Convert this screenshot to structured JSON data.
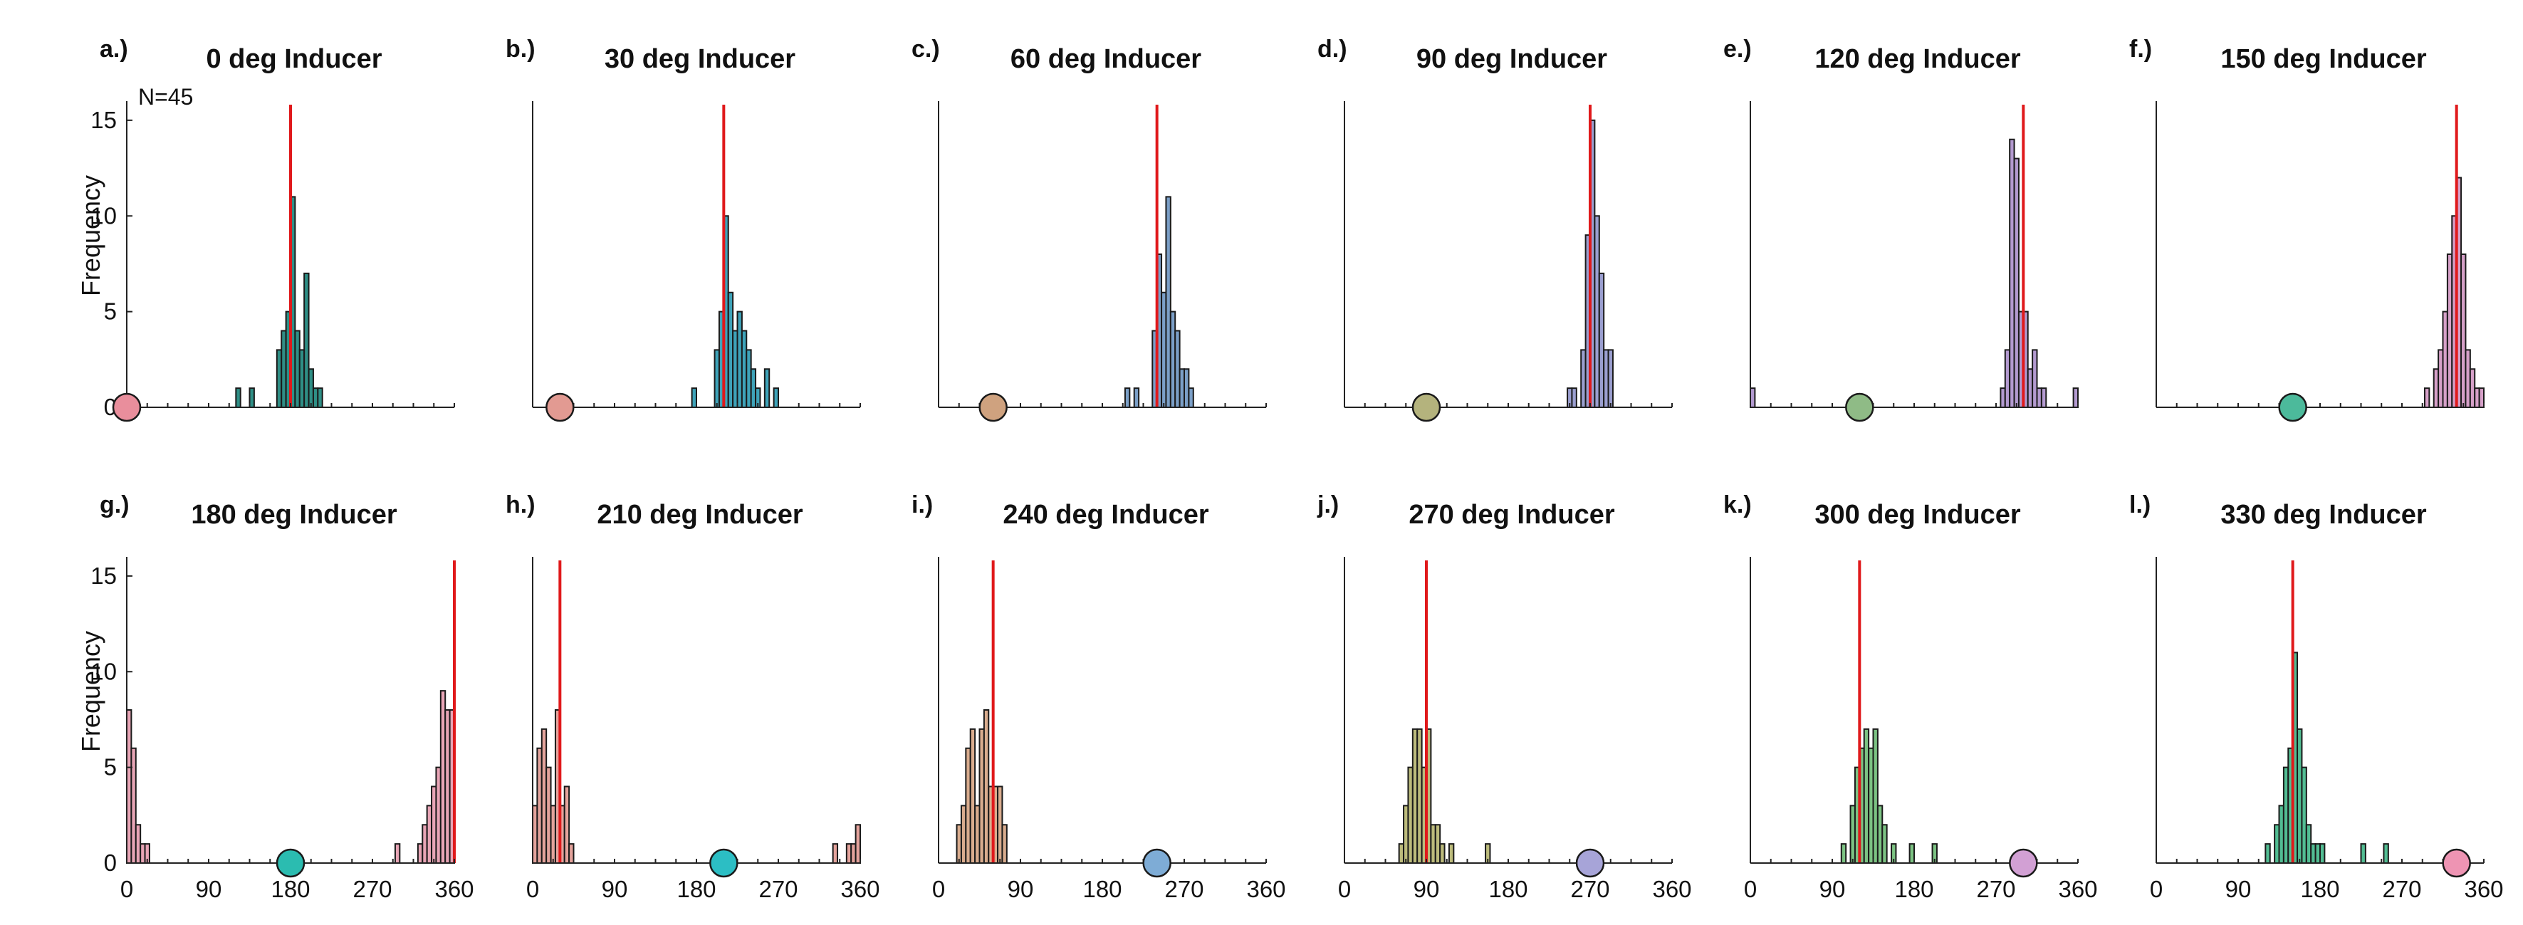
{
  "figure": {
    "y_label": "Frequency",
    "n_label": "N=45"
  },
  "axes": {
    "x_ticks": [
      0,
      90,
      180,
      270,
      360
    ],
    "xlim": [
      0,
      360
    ],
    "y_ticks": [
      0,
      5,
      10,
      15
    ],
    "ylim": [
      0,
      16
    ]
  },
  "chart_data": [
    {
      "type": "bar",
      "letter": "a.)",
      "title": "0 deg Inducer",
      "inducer_deg": 0,
      "inducer_color": "#e98e9c",
      "bar_color": "#2f8f86",
      "mean_deg": 180,
      "bins": [
        [
          120,
          1
        ],
        [
          135,
          1
        ],
        [
          165,
          3
        ],
        [
          170,
          4
        ],
        [
          175,
          5
        ],
        [
          180,
          11
        ],
        [
          185,
          4
        ],
        [
          190,
          3
        ],
        [
          195,
          7
        ],
        [
          200,
          2
        ],
        [
          205,
          1
        ],
        [
          210,
          1
        ]
      ]
    },
    {
      "type": "bar",
      "letter": "b.)",
      "title": "30 deg Inducer",
      "inducer_deg": 30,
      "inducer_color": "#e29a92",
      "bar_color": "#3ea3b9",
      "mean_deg": 210,
      "bins": [
        [
          175,
          1
        ],
        [
          200,
          3
        ],
        [
          205,
          5
        ],
        [
          210,
          10
        ],
        [
          215,
          6
        ],
        [
          220,
          4
        ],
        [
          225,
          5
        ],
        [
          230,
          4
        ],
        [
          235,
          3
        ],
        [
          240,
          2
        ],
        [
          245,
          1
        ],
        [
          255,
          2
        ],
        [
          265,
          1
        ]
      ]
    },
    {
      "type": "bar",
      "letter": "c.)",
      "title": "60 deg Inducer",
      "inducer_deg": 60,
      "inducer_color": "#cfa27f",
      "bar_color": "#7b9fc7",
      "mean_deg": 240,
      "bins": [
        [
          205,
          1
        ],
        [
          215,
          1
        ],
        [
          235,
          4
        ],
        [
          240,
          8
        ],
        [
          245,
          6
        ],
        [
          250,
          11
        ],
        [
          255,
          5
        ],
        [
          260,
          4
        ],
        [
          265,
          2
        ],
        [
          270,
          2
        ],
        [
          275,
          1
        ]
      ]
    },
    {
      "type": "bar",
      "letter": "d.)",
      "title": "90 deg Inducer",
      "inducer_deg": 90,
      "inducer_color": "#b4b37d",
      "bar_color": "#9b9fd0",
      "mean_deg": 270,
      "bins": [
        [
          245,
          1
        ],
        [
          250,
          1
        ],
        [
          260,
          3
        ],
        [
          265,
          9
        ],
        [
          270,
          15
        ],
        [
          275,
          10
        ],
        [
          280,
          7
        ],
        [
          285,
          3
        ],
        [
          290,
          3
        ]
      ]
    },
    {
      "type": "bar",
      "letter": "e.)",
      "title": "120 deg Inducer",
      "inducer_deg": 120,
      "inducer_color": "#8fbb86",
      "bar_color": "#b39ad0",
      "mean_deg": 300,
      "bins": [
        [
          0,
          1
        ],
        [
          275,
          1
        ],
        [
          280,
          3
        ],
        [
          285,
          14
        ],
        [
          290,
          13
        ],
        [
          295,
          5
        ],
        [
          300,
          5
        ],
        [
          305,
          2
        ],
        [
          310,
          3
        ],
        [
          315,
          1
        ],
        [
          320,
          1
        ],
        [
          355,
          1
        ]
      ]
    },
    {
      "type": "bar",
      "letter": "f.)",
      "title": "150 deg Inducer",
      "inducer_deg": 150,
      "inducer_color": "#4cba9b",
      "bar_color": "#d6a0c8",
      "mean_deg": 330,
      "bins": [
        [
          295,
          1
        ],
        [
          305,
          2
        ],
        [
          310,
          3
        ],
        [
          315,
          5
        ],
        [
          320,
          8
        ],
        [
          325,
          10
        ],
        [
          330,
          12
        ],
        [
          335,
          8
        ],
        [
          340,
          3
        ],
        [
          345,
          2
        ],
        [
          350,
          1
        ],
        [
          355,
          1
        ]
      ]
    },
    {
      "type": "bar",
      "letter": "g.)",
      "title": "180 deg Inducer",
      "inducer_deg": 180,
      "inducer_color": "#2bbcb0",
      "bar_color": "#e8a5b6",
      "mean_deg": 360,
      "bins": [
        [
          0,
          8
        ],
        [
          5,
          6
        ],
        [
          10,
          2
        ],
        [
          15,
          1
        ],
        [
          20,
          1
        ],
        [
          295,
          1
        ],
        [
          320,
          1
        ],
        [
          325,
          2
        ],
        [
          330,
          3
        ],
        [
          335,
          4
        ],
        [
          340,
          5
        ],
        [
          345,
          9
        ],
        [
          350,
          8
        ],
        [
          355,
          8
        ]
      ]
    },
    {
      "type": "bar",
      "letter": "h.)",
      "title": "210 deg Inducer",
      "inducer_deg": 210,
      "inducer_color": "#2cbec4",
      "bar_color": "#e4a39c",
      "mean_deg": 30,
      "bins": [
        [
          0,
          3
        ],
        [
          5,
          6
        ],
        [
          10,
          7
        ],
        [
          15,
          5
        ],
        [
          20,
          3
        ],
        [
          25,
          8
        ],
        [
          30,
          3
        ],
        [
          35,
          4
        ],
        [
          40,
          1
        ],
        [
          330,
          1
        ],
        [
          345,
          1
        ],
        [
          350,
          1
        ],
        [
          355,
          2
        ]
      ]
    },
    {
      "type": "bar",
      "letter": "i.)",
      "title": "240 deg Inducer",
      "inducer_deg": 240,
      "inducer_color": "#7eacd6",
      "bar_color": "#d9ac8e",
      "mean_deg": 60,
      "bins": [
        [
          20,
          2
        ],
        [
          25,
          3
        ],
        [
          30,
          6
        ],
        [
          35,
          7
        ],
        [
          40,
          3
        ],
        [
          45,
          7
        ],
        [
          50,
          8
        ],
        [
          55,
          4
        ],
        [
          60,
          4
        ],
        [
          65,
          4
        ],
        [
          70,
          2
        ]
      ]
    },
    {
      "type": "bar",
      "letter": "j.)",
      "title": "270 deg Inducer",
      "inducer_deg": 270,
      "inducer_color": "#a7a4d8",
      "bar_color": "#bcbb7c",
      "mean_deg": 90,
      "bins": [
        [
          60,
          1
        ],
        [
          65,
          3
        ],
        [
          70,
          5
        ],
        [
          75,
          7
        ],
        [
          80,
          7
        ],
        [
          85,
          5
        ],
        [
          90,
          7
        ],
        [
          95,
          2
        ],
        [
          100,
          2
        ],
        [
          105,
          1
        ],
        [
          115,
          1
        ],
        [
          155,
          1
        ]
      ]
    },
    {
      "type": "bar",
      "letter": "k.)",
      "title": "300 deg Inducer",
      "inducer_deg": 300,
      "inducer_color": "#d2a0d4",
      "bar_color": "#7cc383",
      "mean_deg": 120,
      "bins": [
        [
          100,
          1
        ],
        [
          110,
          3
        ],
        [
          115,
          5
        ],
        [
          120,
          6
        ],
        [
          125,
          7
        ],
        [
          130,
          6
        ],
        [
          135,
          7
        ],
        [
          140,
          3
        ],
        [
          145,
          2
        ],
        [
          155,
          1
        ],
        [
          175,
          1
        ],
        [
          200,
          1
        ]
      ]
    },
    {
      "type": "bar",
      "letter": "l.)",
      "title": "330 deg Inducer",
      "inducer_deg": 330,
      "inducer_color": "#ee94b3",
      "bar_color": "#52bd93",
      "mean_deg": 150,
      "bins": [
        [
          120,
          1
        ],
        [
          130,
          2
        ],
        [
          135,
          3
        ],
        [
          140,
          5
        ],
        [
          145,
          6
        ],
        [
          150,
          11
        ],
        [
          155,
          7
        ],
        [
          160,
          5
        ],
        [
          165,
          2
        ],
        [
          170,
          1
        ],
        [
          175,
          1
        ],
        [
          180,
          1
        ],
        [
          225,
          1
        ],
        [
          250,
          1
        ]
      ]
    }
  ]
}
